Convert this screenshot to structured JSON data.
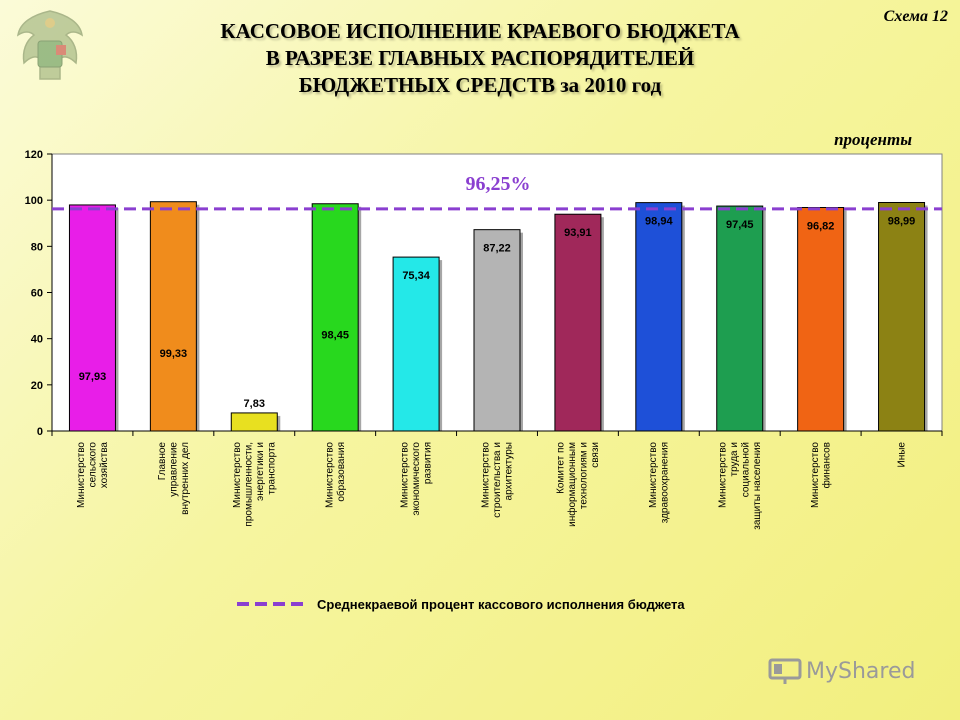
{
  "header": {
    "scheme_label": "Схема 12",
    "title_lines": [
      "КАССОВОЕ ИСПОЛНЕНИЕ КРАЕВОГО БЮДЖЕТА",
      "В РАЗРЕЗЕ ГЛАВНЫХ РАСПОРЯДИТЕЛЕЙ",
      "БЮДЖЕТНЫХ СРЕДСТВ за 2010 год"
    ],
    "units": "проценты"
  },
  "watermark": {
    "text": "MyShared"
  },
  "chart_data": {
    "type": "bar",
    "ylim": [
      0,
      120
    ],
    "yticks": [
      0,
      20,
      40,
      60,
      80,
      100,
      120
    ],
    "grid": false,
    "categories": [
      [
        "Министерство",
        "сельского",
        "хозяйства"
      ],
      [
        "Главное",
        "управление",
        "внутренних дел"
      ],
      [
        "Министерство",
        "промышленности,",
        "энергетики и",
        "транспорта"
      ],
      [
        "Министерство",
        "образования"
      ],
      [
        "Министерство",
        "экономического",
        "развития"
      ],
      [
        "Министерство",
        "строительства и",
        "архитектуры"
      ],
      [
        "Комитет по",
        "информационным",
        "технологиям и",
        "связи"
      ],
      [
        "Министерство",
        "здравоохранения"
      ],
      [
        "Министерство",
        "труда и",
        "социальной",
        "защиты населения"
      ],
      [
        "Министерство",
        "финансов"
      ],
      [
        "Иные"
      ]
    ],
    "values": [
      97.93,
      99.33,
      7.83,
      98.45,
      75.34,
      87.22,
      93.91,
      98.94,
      97.45,
      96.82,
      98.99
    ],
    "value_labels": [
      "97,93",
      "99,33",
      "7,83",
      "98,45",
      "75,34",
      "87,22",
      "93,91",
      "98,94",
      "97,45",
      "96,82",
      "98,99"
    ],
    "bar_colors": [
      "#e81ee8",
      "#f08c1c",
      "#e8e020",
      "#28d81e",
      "#24e8e8",
      "#b4b4b4",
      "#a0285a",
      "#1e50d8",
      "#1e9e50",
      "#f06414",
      "#8c8214"
    ],
    "average": {
      "value": 96.25,
      "label": "96,25%",
      "legend_label": "Среднекраевой процент кассового исполнения бюджета",
      "color": "#8a3fd0"
    }
  }
}
